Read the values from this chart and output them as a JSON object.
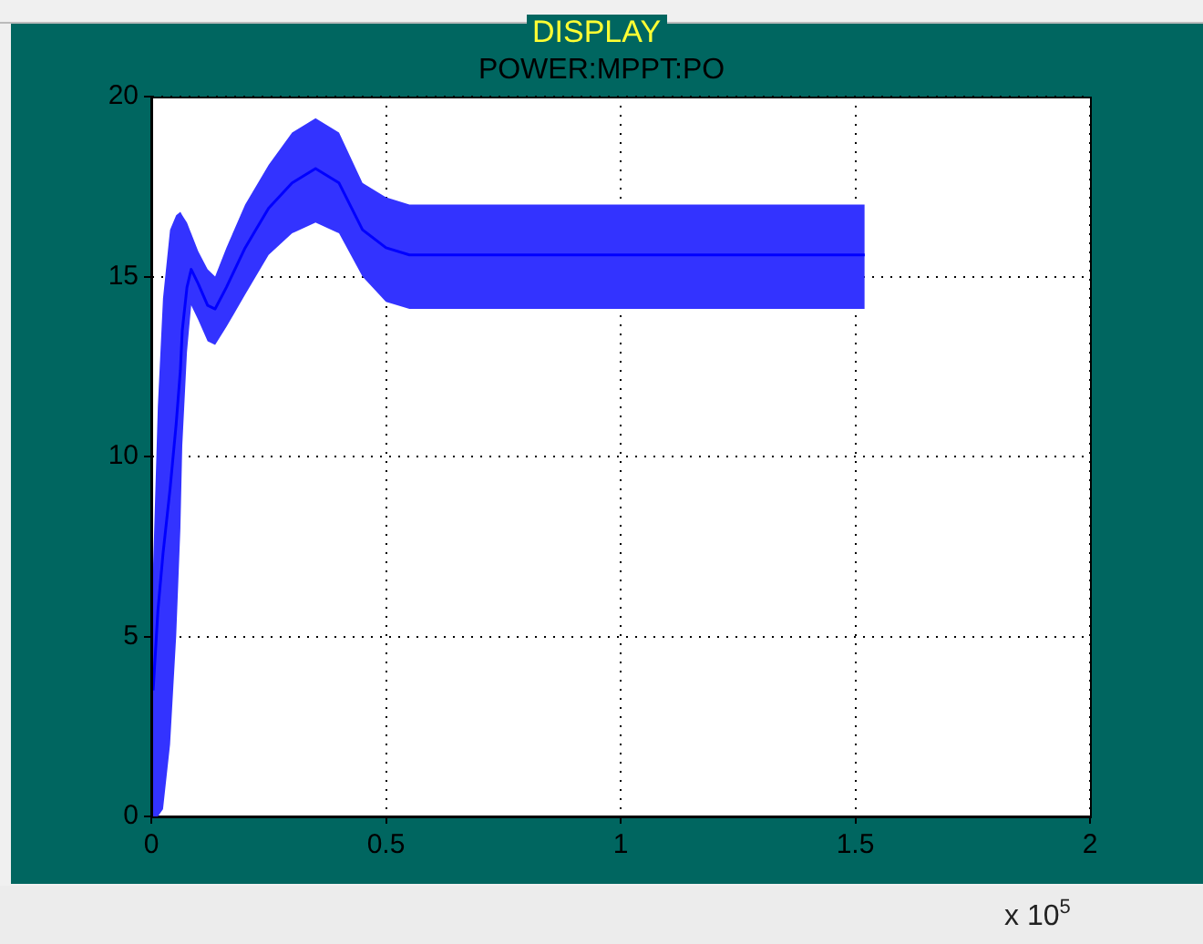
{
  "chart_data": {
    "type": "line",
    "title": "POWER:MPPT:PO",
    "xlabel": "x 10$^{5}$",
    "annotations": [
      "DISPLAY"
    ],
    "x": [
      0,
      0.004,
      0.014,
      0.025,
      0.04,
      0.053,
      0.062,
      0.066,
      0.076,
      0.085,
      0.1,
      0.12,
      0.136,
      0.16,
      0.2,
      0.25,
      0.3,
      0.35,
      0.4,
      0.45,
      0.5,
      0.55,
      0.6,
      0.8,
      1,
      1.2,
      1.4,
      1.52
    ],
    "series": [
      {
        "color": "#0000ff",
        "values": [
          null,
          3.5,
          5.7,
          7.3,
          9.1,
          10.9,
          12.4,
          13.5,
          14.7,
          15.2,
          14.8,
          14.2,
          14.1,
          14.7,
          15.8,
          16.9,
          17.6,
          18,
          17.6,
          16.3,
          15.8,
          15.6,
          15.6,
          15.6,
          15.6,
          15.6,
          15.6,
          15.6
        ],
        "lower": [
          0,
          0,
          0,
          0.2,
          2,
          5,
          8,
          10.3,
          12.9,
          14.2,
          13.8,
          13.2,
          13.1,
          13.6,
          14.5,
          15.6,
          16.2,
          16.5,
          16.2,
          15,
          14.3,
          14.1,
          14.1,
          14.1,
          14.1,
          14.1,
          14.1,
          14.1
        ],
        "upper": [
          0,
          7,
          11.4,
          14.4,
          16.3,
          16.7,
          16.8,
          16.7,
          16.5,
          16.2,
          15.7,
          15.2,
          15,
          15.8,
          17,
          18.1,
          19,
          19.4,
          19,
          17.6,
          17.2,
          17,
          17,
          17,
          17,
          17,
          17,
          17
        ]
      }
    ],
    "xlim": [
      0,
      2
    ],
    "xticks": [
      0,
      0.5,
      1,
      1.5,
      2
    ],
    "ylim": [
      0,
      20
    ],
    "yticks": [
      0,
      5,
      10,
      15,
      20
    ],
    "grid": true,
    "legend": false
  }
}
